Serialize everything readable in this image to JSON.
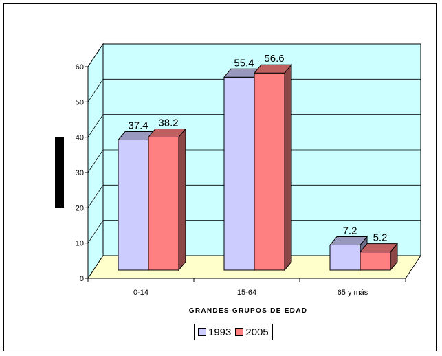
{
  "chart_data": {
    "type": "bar",
    "categories": [
      "0-14",
      "15-64",
      "65 y más"
    ],
    "series": [
      {
        "name": "1993",
        "values": [
          37.4,
          55.4,
          7.2
        ],
        "color": "#ccccff"
      },
      {
        "name": "2005",
        "values": [
          38.2,
          56.6,
          5.2
        ],
        "color": "#ff8080"
      }
    ],
    "xlabel": "GRANDES GRUPOS DE EDAD",
    "ylabel": "",
    "ylim": [
      0,
      60
    ],
    "yticks": [
      0,
      10,
      20,
      30,
      40,
      50,
      60
    ],
    "grid": true,
    "legend_position": "bottom",
    "walls_color": "#ccffff",
    "floor_color": "#ffffcc",
    "style": "3d clustered columns"
  }
}
